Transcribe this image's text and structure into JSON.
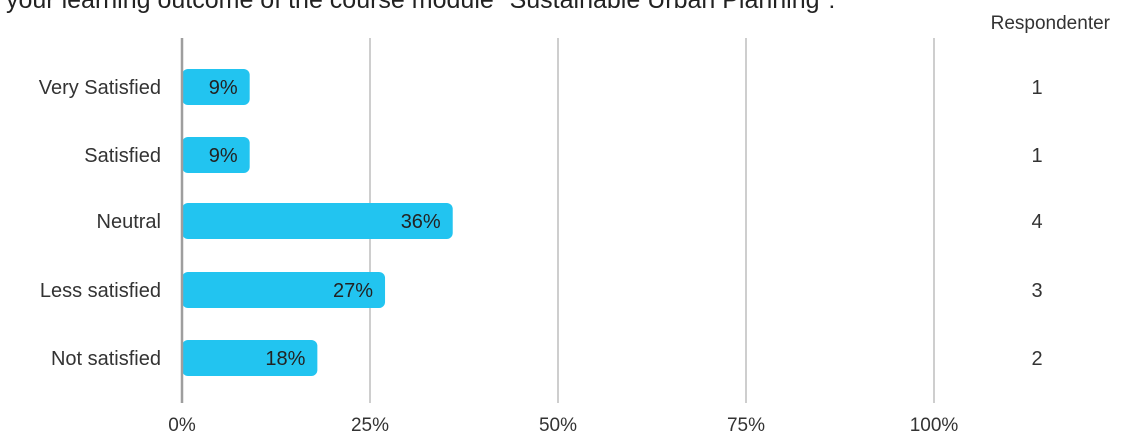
{
  "title": "your learning outcome of the course module \"Sustainable Urban Planning\":",
  "respondents_header": "Respondenter",
  "colors": {
    "bar": "#22C4F0",
    "grid": "#9E9E9E",
    "axis": "#9E9E9E",
    "text": "#333333"
  },
  "chart_data": {
    "type": "bar",
    "orientation": "horizontal",
    "categories": [
      "Very Satisfied",
      "Satisfied",
      "Neutral",
      "Less satisfied",
      "Not satisfied"
    ],
    "values": [
      9,
      9,
      36,
      27,
      18
    ],
    "value_labels": [
      "9%",
      "9%",
      "36%",
      "27%",
      "18%"
    ],
    "respondents": [
      "1",
      "1",
      "4",
      "3",
      "2"
    ],
    "x_ticks": [
      0,
      25,
      50,
      75,
      100
    ],
    "x_tick_labels": [
      "0%",
      "25%",
      "50%",
      "75%",
      "100%"
    ],
    "xlim": [
      0,
      100
    ],
    "grid": true
  }
}
